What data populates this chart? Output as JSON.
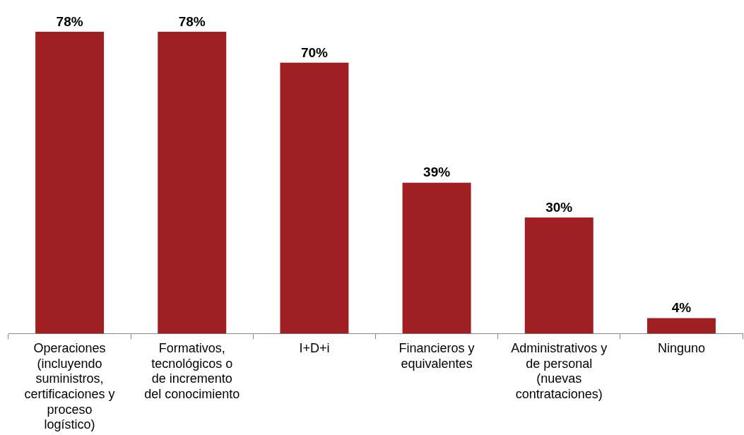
{
  "chart_data": {
    "type": "bar",
    "categories": [
      "Operaciones (incluyendo suministros, certificaciones y proceso logístico)",
      "Formativos, tecnológicos o de incremento del conocimiento",
      "I+D+i",
      "Financieros y equivalentes",
      "Administrativos y de personal (nuevas contrataciones)",
      "Ninguno"
    ],
    "values": [
      78,
      78,
      70,
      39,
      30,
      4
    ],
    "value_labels": [
      "78%",
      "78%",
      "70%",
      "39%",
      "30%",
      "4%"
    ],
    "color": "#9f1f22",
    "grid": false,
    "legend": false
  }
}
